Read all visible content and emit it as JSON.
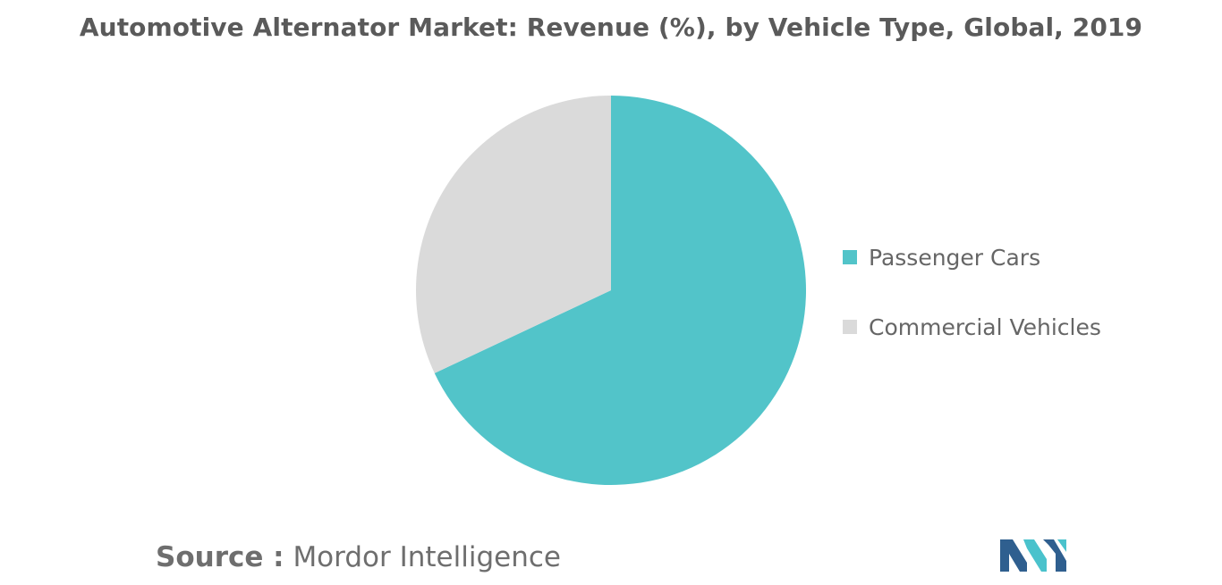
{
  "chart_data": {
    "type": "pie",
    "title": "Automotive Alternator Market: Revenue (%), by Vehicle Type, Global, 2019",
    "categories": [
      "Passenger Cars",
      "Commercial Vehicles"
    ],
    "values": [
      68,
      32
    ],
    "colors": [
      "#52c4c9",
      "#dadada"
    ],
    "legend_position": "right",
    "start_angle_deg": 0,
    "direction": "clockwise"
  },
  "source": {
    "prefix": "Source :",
    "text": "Mordor Intelligence"
  },
  "logo": {
    "icon": "mordor-intelligence-logo-icon",
    "colors": [
      "#2f5f8f",
      "#4ac2cc"
    ]
  }
}
